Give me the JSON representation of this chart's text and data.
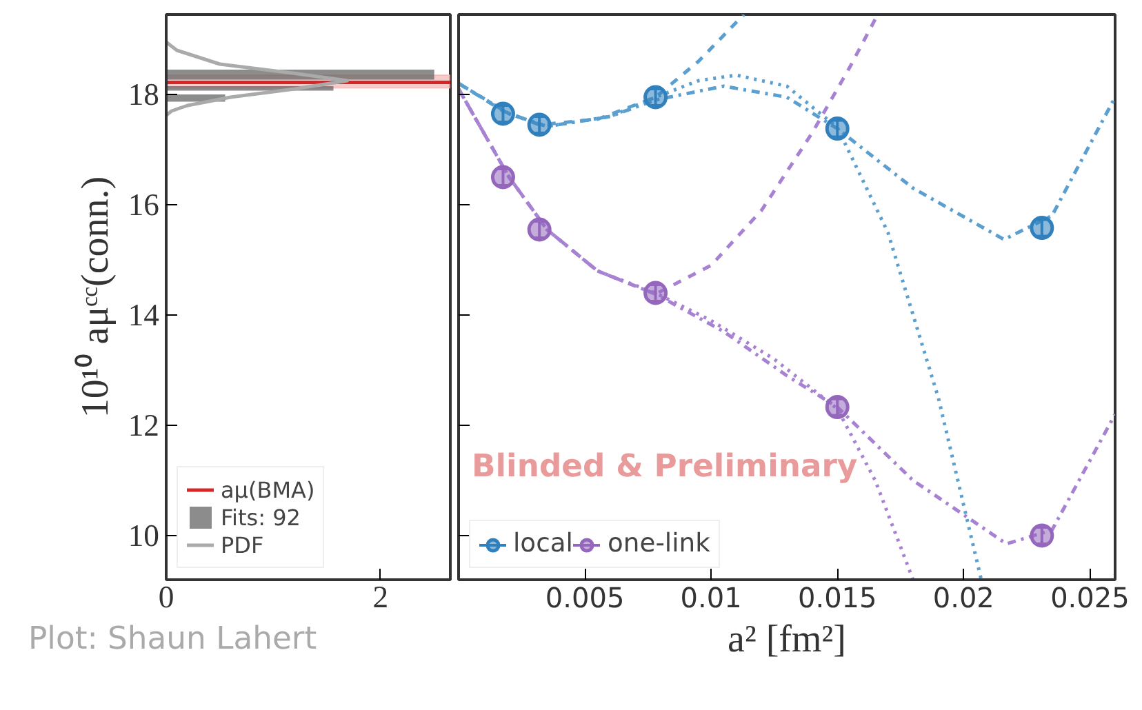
{
  "chart_data": [
    {
      "type": "histogram",
      "orientation": "horizontal",
      "ylabel": "10¹⁰ aμᶜᶜ(conn.)",
      "xlim": [
        0,
        2.65
      ],
      "xticks": [
        0,
        2
      ],
      "ylim": [
        9.2,
        19.45
      ],
      "yticks": [
        10,
        12,
        14,
        16,
        18
      ],
      "grid": false,
      "legend": "bottom left",
      "series": [
        {
          "name": "Fits: 92",
          "color": "#666666",
          "bins": [
            17.87,
            18.0,
            18.07,
            18.15,
            18.27,
            18.45
          ],
          "values": [
            0.55,
            0,
            1.56,
            0,
            2.5
          ]
        },
        {
          "type": "line",
          "name": "PDF",
          "color": "#aaaaaa",
          "x": [
            18.95,
            18.8,
            18.55,
            18.38,
            18.25,
            18.1,
            17.95,
            17.8,
            17.7,
            17.62
          ],
          "values": [
            0,
            0.1,
            0.5,
            1.2,
            1.69,
            1.2,
            0.6,
            0.2,
            0.05,
            0
          ]
        }
      ],
      "ref_lines": [
        {
          "axis": "y",
          "value": 18.22,
          "label": "aμ(BMA)",
          "color": "#d62728"
        }
      ],
      "bands": [
        {
          "axis": "y",
          "from": 18.12,
          "to": 18.35,
          "color": "#f5b5b5"
        }
      ],
      "annotations": [
        "Plot: Shaun Lahert"
      ]
    },
    {
      "type": "scatter",
      "xlabel": "a² [fm²]",
      "xlim": [
        0,
        0.026
      ],
      "xticks": [
        0.005,
        0.01,
        0.015,
        0.02,
        0.025
      ],
      "ylim": [
        9.2,
        19.45
      ],
      "yticks": [
        10,
        12,
        14,
        16,
        18
      ],
      "tick_labels": "x",
      "grid": false,
      "legend": "bottom left",
      "series": [
        {
          "type": "line",
          "color": "#5a9fcf",
          "line_style": "dashed",
          "x": [
            0,
            0.00176,
            0.0032,
            0.0055,
            0.0078,
            0.0095,
            0.0113
          ],
          "values": [
            18.2,
            17.7,
            17.45,
            17.55,
            17.95,
            18.6,
            19.45
          ]
        },
        {
          "type": "line",
          "color": "#5a9fcf",
          "line_style": "dotted",
          "x": [
            0,
            0.002,
            0.0035,
            0.006,
            0.0078,
            0.0095,
            0.011,
            0.013,
            0.015,
            0.017,
            0.019,
            0.0207
          ],
          "values": [
            18.2,
            17.65,
            17.42,
            17.6,
            17.95,
            18.25,
            18.35,
            18.15,
            17.4,
            15.5,
            12.5,
            9.2
          ]
        },
        {
          "type": "line",
          "color": "#5a9fcf",
          "line_style": "dashdot",
          "x": [
            0,
            0.002,
            0.0035,
            0.006,
            0.0078,
            0.0105,
            0.013,
            0.015,
            0.018,
            0.0216,
            0.0235,
            0.026
          ],
          "values": [
            18.2,
            17.65,
            17.42,
            17.6,
            17.9,
            18.15,
            17.95,
            17.38,
            16.3,
            15.37,
            15.8,
            17.95
          ]
        },
        {
          "type": "line",
          "color": "#a782d2",
          "line_style": "dashed",
          "x": [
            0,
            0.002,
            0.0035,
            0.0055,
            0.0078,
            0.01,
            0.012,
            0.014,
            0.0155,
            0.0166
          ],
          "values": [
            18.1,
            16.5,
            15.55,
            14.8,
            14.38,
            14.9,
            15.9,
            17.3,
            18.5,
            19.45
          ]
        },
        {
          "type": "line",
          "color": "#a782d2",
          "line_style": "dotted",
          "x": [
            0,
            0.002,
            0.0035,
            0.0055,
            0.0078,
            0.01,
            0.0125,
            0.015,
            0.0165,
            0.018
          ],
          "values": [
            18.1,
            16.5,
            15.55,
            14.8,
            14.4,
            13.9,
            13.2,
            12.3,
            11.0,
            9.2
          ]
        },
        {
          "type": "line",
          "color": "#a782d2",
          "line_style": "dashdot",
          "x": [
            0,
            0.002,
            0.0035,
            0.0055,
            0.0078,
            0.0105,
            0.013,
            0.015,
            0.018,
            0.0217,
            0.0235,
            0.026
          ],
          "values": [
            18.1,
            16.5,
            15.55,
            14.8,
            14.38,
            13.7,
            12.9,
            12.33,
            11.0,
            9.85,
            10.1,
            12.2
          ]
        },
        {
          "name": "local",
          "color": "#2f80bd",
          "marker": "circle",
          "x": [
            0.00176,
            0.0032,
            0.0078,
            0.015,
            0.0231
          ],
          "values": [
            17.65,
            17.45,
            17.95,
            17.38,
            15.58
          ],
          "errors": [
            0.15,
            0.15,
            0.15,
            0.15,
            0.15
          ]
        },
        {
          "name": "one-link",
          "color": "#9467bd",
          "marker": "circle",
          "x": [
            0.00176,
            0.0032,
            0.0078,
            0.015,
            0.0231
          ],
          "values": [
            16.5,
            15.55,
            14.4,
            12.33,
            10.0
          ],
          "errors": [
            0.15,
            0.15,
            0.15,
            0.15,
            0.15
          ]
        }
      ],
      "annotations": [
        "Blinded & Preliminary"
      ]
    }
  ]
}
